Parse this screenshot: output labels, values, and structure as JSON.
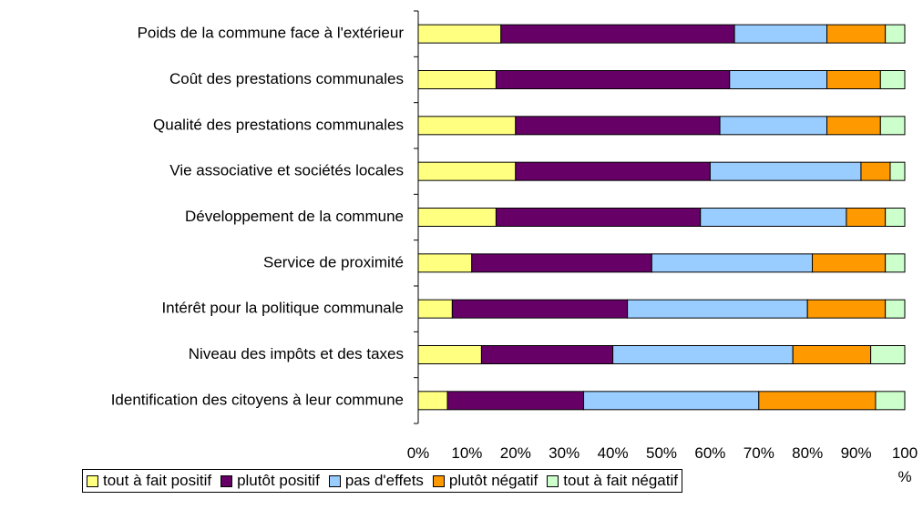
{
  "chart_data": {
    "type": "stacked-bar-horizontal",
    "categories": [
      "Poids de la commune face à l'extérieur",
      "Coût des prestations communales",
      "Qualité des prestations communales",
      "Vie associative et sociétés locales",
      "Développement de la commune",
      "Service de proximité",
      "Intérêt pour la politique communale",
      "Niveau des impôts et des taxes",
      "Identification des citoyens à leur commune"
    ],
    "series": [
      {
        "name": "tout à fait positif",
        "color": "#ffff80",
        "values": [
          17,
          16,
          20,
          20,
          16,
          11,
          7,
          13,
          6
        ]
      },
      {
        "name": "plutôt positif",
        "color": "#660066",
        "values": [
          48,
          48,
          42,
          40,
          42,
          37,
          36,
          27,
          28
        ]
      },
      {
        "name": "pas d'effets",
        "color": "#99ccff",
        "values": [
          19,
          20,
          22,
          31,
          30,
          33,
          37,
          37,
          36
        ]
      },
      {
        "name": "plutôt négatif",
        "color": "#ff9900",
        "values": [
          12,
          11,
          11,
          6,
          8,
          15,
          16,
          16,
          24
        ]
      },
      {
        "name": "tout à fait négatif",
        "color": "#ccffcc",
        "values": [
          4,
          5,
          5,
          3,
          4,
          4,
          4,
          7,
          6
        ]
      }
    ],
    "xlim": [
      0,
      100
    ],
    "xticks": [
      {
        "value": 0,
        "label": "0%"
      },
      {
        "value": 10,
        "label": "10%"
      },
      {
        "value": 20,
        "label": "20%"
      },
      {
        "value": 30,
        "label": "30%"
      },
      {
        "value": 40,
        "label": "40%"
      },
      {
        "value": 50,
        "label": "50%"
      },
      {
        "value": 60,
        "label": "60%"
      },
      {
        "value": 70,
        "label": "70%"
      },
      {
        "value": 80,
        "label": "80%"
      },
      {
        "value": 90,
        "label": "90%"
      },
      {
        "value": 100,
        "label": "100 %"
      }
    ]
  }
}
